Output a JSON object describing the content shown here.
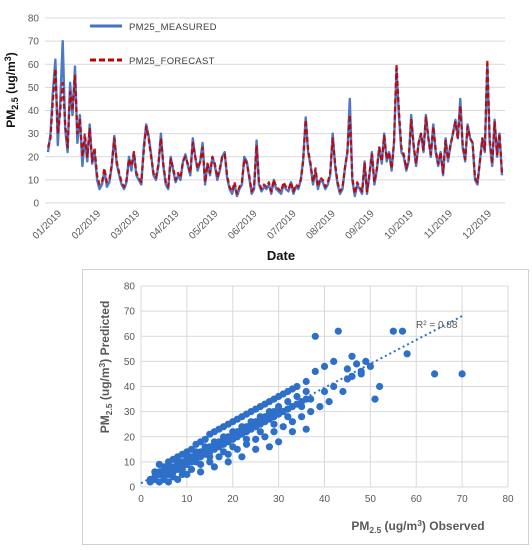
{
  "chart_data": [
    {
      "type": "line",
      "xlabel": "Date",
      "ylabel": "PM2.5 (ug/m3)",
      "ylim": [
        0,
        80
      ],
      "yticks": [
        0,
        10,
        20,
        30,
        40,
        50,
        60,
        70,
        80
      ],
      "x_tick_labels": [
        "01/2019",
        "02/2019",
        "03/2019",
        "04/2019",
        "05/2019",
        "06/2019",
        "07/2019",
        "08/2019",
        "09/2019",
        "10/2019",
        "11/2019",
        "12/2019"
      ],
      "grid": true,
      "legend_position": "top-left",
      "series": [
        {
          "name": "PM25_MEASURED",
          "color": "#4472c4",
          "style": "solid",
          "values": [
            22,
            30,
            48,
            62,
            25,
            44,
            70,
            32,
            22,
            52,
            38,
            59,
            26,
            38,
            16,
            28,
            18,
            34,
            17,
            22,
            10,
            6,
            8,
            14,
            7,
            9,
            16,
            29,
            17,
            12,
            8,
            6,
            9,
            20,
            14,
            22,
            12,
            10,
            8,
            24,
            34,
            29,
            21,
            12,
            10,
            16,
            30,
            16,
            8,
            6,
            20,
            14,
            9,
            12,
            10,
            18,
            21,
            16,
            12,
            28,
            20,
            14,
            18,
            26,
            8,
            17,
            12,
            20,
            16,
            10,
            14,
            20,
            22,
            11,
            6,
            4,
            8,
            3,
            6,
            8,
            20,
            18,
            11,
            4,
            6,
            27,
            8,
            5,
            7,
            6,
            8,
            4,
            10,
            6,
            5,
            4,
            8,
            6,
            5,
            9,
            4,
            7,
            6,
            10,
            19,
            37,
            22,
            16,
            8,
            14,
            6,
            10,
            9,
            6,
            8,
            12,
            30,
            16,
            8,
            4,
            6,
            15,
            22,
            45,
            10,
            3,
            8,
            6,
            4,
            18,
            4,
            12,
            22,
            8,
            14,
            24,
            17,
            30,
            18,
            22,
            14,
            26,
            58,
            38,
            22,
            20,
            14,
            18,
            38,
            24,
            16,
            26,
            30,
            22,
            38,
            28,
            20,
            34,
            22,
            16,
            22,
            12,
            28,
            18,
            25,
            30,
            36,
            28,
            45,
            24,
            18,
            34,
            28,
            26,
            10,
            8,
            18,
            28,
            22,
            60,
            26,
            16,
            36,
            20,
            30,
            12
          ]
        },
        {
          "name": "PM25_FORECAST",
          "color": "#c00000",
          "style": "dashed",
          "values": [
            24,
            28,
            44,
            58,
            30,
            40,
            52,
            34,
            24,
            48,
            40,
            55,
            30,
            36,
            20,
            30,
            20,
            32,
            18,
            24,
            12,
            8,
            9,
            15,
            9,
            10,
            17,
            28,
            18,
            13,
            9,
            7,
            10,
            19,
            16,
            22,
            13,
            11,
            9,
            22,
            33,
            28,
            20,
            13,
            11,
            17,
            28,
            17,
            9,
            7,
            19,
            15,
            10,
            13,
            11,
            18,
            20,
            17,
            13,
            26,
            20,
            15,
            18,
            24,
            9,
            17,
            13,
            20,
            17,
            11,
            15,
            20,
            21,
            12,
            7,
            5,
            9,
            4,
            7,
            9,
            19,
            17,
            12,
            5,
            7,
            25,
            9,
            6,
            8,
            7,
            9,
            5,
            10,
            7,
            6,
            5,
            9,
            7,
            6,
            9,
            5,
            8,
            7,
            10,
            18,
            36,
            23,
            17,
            9,
            15,
            7,
            11,
            10,
            7,
            9,
            13,
            28,
            17,
            9,
            5,
            7,
            15,
            22,
            38,
            11,
            4,
            9,
            7,
            5,
            17,
            5,
            13,
            21,
            9,
            15,
            24,
            18,
            29,
            19,
            22,
            15,
            26,
            60,
            40,
            24,
            21,
            15,
            19,
            36,
            25,
            17,
            26,
            30,
            23,
            37,
            28,
            21,
            33,
            23,
            17,
            22,
            13,
            27,
            19,
            25,
            30,
            35,
            28,
            42,
            25,
            19,
            33,
            28,
            26,
            11,
            9,
            18,
            28,
            23,
            62,
            28,
            17,
            35,
            21,
            30,
            13
          ]
        }
      ]
    },
    {
      "type": "scatter",
      "xlabel": "PM2.5 (ug/m3) Observed",
      "ylabel": "PM2.5 (ug/m3) Predicted",
      "xlim": [
        0,
        80
      ],
      "ylim": [
        0,
        80
      ],
      "xticks": [
        0,
        10,
        20,
        30,
        40,
        50,
        60,
        70,
        80
      ],
      "yticks": [
        0,
        10,
        20,
        30,
        40,
        50,
        60,
        70,
        80
      ],
      "grid": true,
      "marker_color": "#2e6fc9",
      "trendline": {
        "style": "dotted",
        "color": "#2e6fc9",
        "x": [
          0,
          70.5
        ],
        "y": [
          1.5,
          68.5
        ]
      },
      "r2_label": "R² = 0.88",
      "points": [
        [
          2,
          2
        ],
        [
          3,
          3
        ],
        [
          4,
          2
        ],
        [
          4,
          5
        ],
        [
          5,
          4
        ],
        [
          5,
          6
        ],
        [
          6,
          5
        ],
        [
          6,
          7
        ],
        [
          7,
          6
        ],
        [
          7,
          8
        ],
        [
          8,
          7
        ],
        [
          8,
          9
        ],
        [
          9,
          8
        ],
        [
          9,
          10
        ],
        [
          10,
          9
        ],
        [
          10,
          11
        ],
        [
          11,
          10
        ],
        [
          11,
          12
        ],
        [
          12,
          11
        ],
        [
          12,
          13
        ],
        [
          13,
          12
        ],
        [
          13,
          14
        ],
        [
          14,
          13
        ],
        [
          14,
          15
        ],
        [
          15,
          14
        ],
        [
          15,
          16
        ],
        [
          16,
          15
        ],
        [
          16,
          17
        ],
        [
          17,
          16
        ],
        [
          17,
          18
        ],
        [
          18,
          17
        ],
        [
          18,
          19
        ],
        [
          19,
          18
        ],
        [
          19,
          20
        ],
        [
          20,
          19
        ],
        [
          20,
          21
        ],
        [
          21,
          20
        ],
        [
          21,
          22
        ],
        [
          22,
          21
        ],
        [
          22,
          23
        ],
        [
          23,
          22
        ],
        [
          23,
          24
        ],
        [
          24,
          23
        ],
        [
          24,
          25
        ],
        [
          25,
          24
        ],
        [
          25,
          26
        ],
        [
          26,
          25
        ],
        [
          26,
          27
        ],
        [
          27,
          26
        ],
        [
          27,
          28
        ],
        [
          28,
          27
        ],
        [
          28,
          29
        ],
        [
          29,
          28
        ],
        [
          29,
          30
        ],
        [
          30,
          29
        ],
        [
          30,
          31
        ],
        [
          31,
          30
        ],
        [
          32,
          31
        ],
        [
          33,
          32
        ],
        [
          34,
          33
        ],
        [
          35,
          34
        ],
        [
          36,
          35
        ],
        [
          3,
          6
        ],
        [
          4,
          9
        ],
        [
          5,
          3
        ],
        [
          6,
          10
        ],
        [
          7,
          4
        ],
        [
          8,
          12
        ],
        [
          9,
          5
        ],
        [
          10,
          14
        ],
        [
          11,
          7
        ],
        [
          12,
          17
        ],
        [
          13,
          9
        ],
        [
          14,
          19
        ],
        [
          15,
          10
        ],
        [
          16,
          22
        ],
        [
          17,
          12
        ],
        [
          18,
          24
        ],
        [
          19,
          13
        ],
        [
          20,
          26
        ],
        [
          21,
          15
        ],
        [
          22,
          28
        ],
        [
          23,
          17
        ],
        [
          24,
          30
        ],
        [
          25,
          19
        ],
        [
          26,
          32
        ],
        [
          27,
          20
        ],
        [
          28,
          34
        ],
        [
          29,
          22
        ],
        [
          30,
          36
        ],
        [
          31,
          24
        ],
        [
          32,
          38
        ],
        [
          33,
          26
        ],
        [
          34,
          40
        ],
        [
          35,
          28
        ],
        [
          36,
          42
        ],
        [
          37,
          30
        ],
        [
          38,
          46
        ],
        [
          39,
          32
        ],
        [
          40,
          48
        ],
        [
          41,
          34
        ],
        [
          42,
          50
        ],
        [
          44,
          38
        ],
        [
          46,
          44
        ],
        [
          47,
          49
        ],
        [
          48,
          46
        ],
        [
          50,
          48
        ],
        [
          52,
          40
        ],
        [
          38,
          60
        ],
        [
          43,
          62
        ],
        [
          45,
          47
        ],
        [
          46,
          52
        ],
        [
          49,
          50
        ],
        [
          51,
          35
        ],
        [
          55,
          62
        ],
        [
          57,
          62
        ],
        [
          58,
          53
        ],
        [
          64,
          45
        ],
        [
          70,
          45
        ],
        [
          30,
          18
        ],
        [
          33,
          22
        ],
        [
          36,
          23
        ],
        [
          28,
          16
        ],
        [
          25,
          15
        ],
        [
          22,
          12
        ],
        [
          19,
          10
        ],
        [
          16,
          8
        ],
        [
          13,
          6
        ],
        [
          10,
          5
        ],
        [
          8,
          3
        ],
        [
          6,
          2
        ],
        [
          5,
          8
        ],
        [
          7,
          11
        ],
        [
          9,
          13
        ],
        [
          11,
          15
        ],
        [
          13,
          18
        ],
        [
          15,
          21
        ],
        [
          17,
          23
        ],
        [
          19,
          25
        ],
        [
          21,
          27
        ],
        [
          23,
          29
        ],
        [
          25,
          31
        ],
        [
          27,
          33
        ],
        [
          29,
          35
        ],
        [
          31,
          37
        ],
        [
          33,
          39
        ],
        [
          42,
          40
        ],
        [
          45,
          43
        ],
        [
          48,
          45
        ],
        [
          40,
          38
        ],
        [
          37,
          35
        ],
        [
          35,
          32
        ],
        [
          32,
          28
        ],
        [
          29,
          25
        ],
        [
          26,
          22
        ],
        [
          23,
          19
        ],
        [
          20,
          16
        ],
        [
          18,
          14
        ],
        [
          15,
          12
        ],
        [
          12,
          10
        ],
        [
          9,
          7
        ],
        [
          3,
          4
        ],
        [
          2,
          3
        ],
        [
          4,
          6
        ],
        [
          6,
          8
        ],
        [
          8,
          10
        ],
        [
          10,
          12
        ],
        [
          12,
          14
        ],
        [
          14,
          16
        ],
        [
          16,
          18
        ],
        [
          18,
          20
        ],
        [
          20,
          22
        ],
        [
          22,
          24
        ],
        [
          24,
          26
        ],
        [
          26,
          28
        ],
        [
          28,
          30
        ],
        [
          30,
          32
        ],
        [
          32,
          34
        ],
        [
          34,
          36
        ],
        [
          36,
          38
        ]
      ]
    }
  ]
}
